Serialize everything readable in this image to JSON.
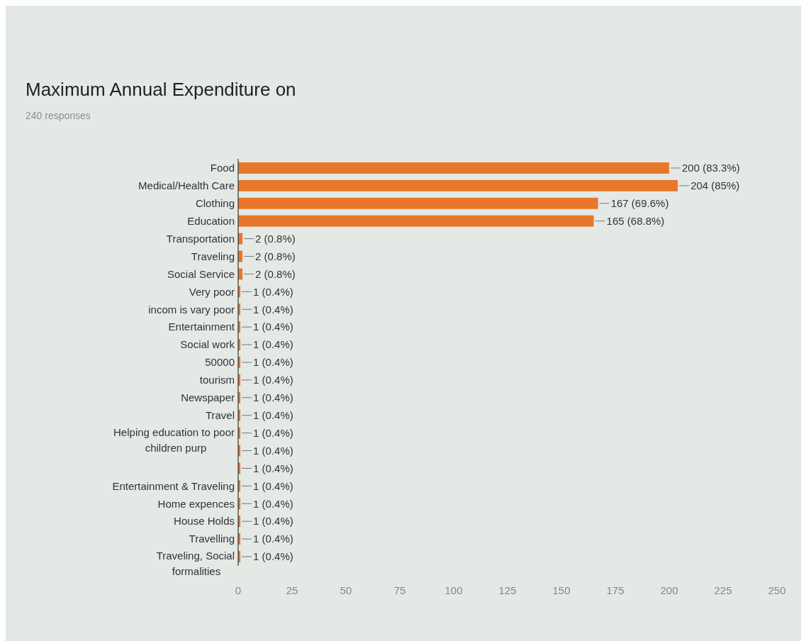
{
  "chart_data": {
    "type": "bar",
    "orientation": "horizontal",
    "title": "Maximum Annual Expenditure on",
    "subtitle": "240 responses",
    "categories": [
      "Food",
      "Medical/Health Care",
      "Clothing",
      "Education",
      "Transportation",
      "Traveling",
      "Social Service",
      "Very poor",
      "incom is vary poor",
      "Entertainment",
      "Social work",
      "50000",
      "tourism",
      "Newspaper",
      "Travel",
      "Helping education to poor children purp",
      null,
      null,
      "Entertainment & Traveling",
      "Home expences",
      "House Holds",
      "Travelling",
      "Traveling, Social formalities"
    ],
    "values": [
      200,
      204,
      167,
      165,
      2,
      2,
      2,
      1,
      1,
      1,
      1,
      1,
      1,
      1,
      1,
      1,
      1,
      1,
      1,
      1,
      1,
      1,
      1
    ],
    "value_labels": [
      "200 (83.3%)",
      "204 (85%)",
      "167 (69.6%)",
      "165 (68.8%)",
      "2 (0.8%)",
      "2 (0.8%)",
      "2 (0.8%)",
      "1 (0.4%)",
      "1 (0.4%)",
      "1 (0.4%)",
      "1 (0.4%)",
      "1 (0.4%)",
      "1 (0.4%)",
      "1 (0.4%)",
      "1 (0.4%)",
      "1 (0.4%)",
      "1 (0.4%)",
      "1 (0.4%)",
      "1 (0.4%)",
      "1 (0.4%)",
      "1 (0.4%)",
      "1 (0.4%)",
      "1 (0.4%)"
    ],
    "color": "#e8772b",
    "xlim": [
      0,
      250
    ],
    "xticks": [
      0,
      25,
      50,
      75,
      100,
      125,
      150,
      175,
      200,
      225,
      250
    ]
  }
}
